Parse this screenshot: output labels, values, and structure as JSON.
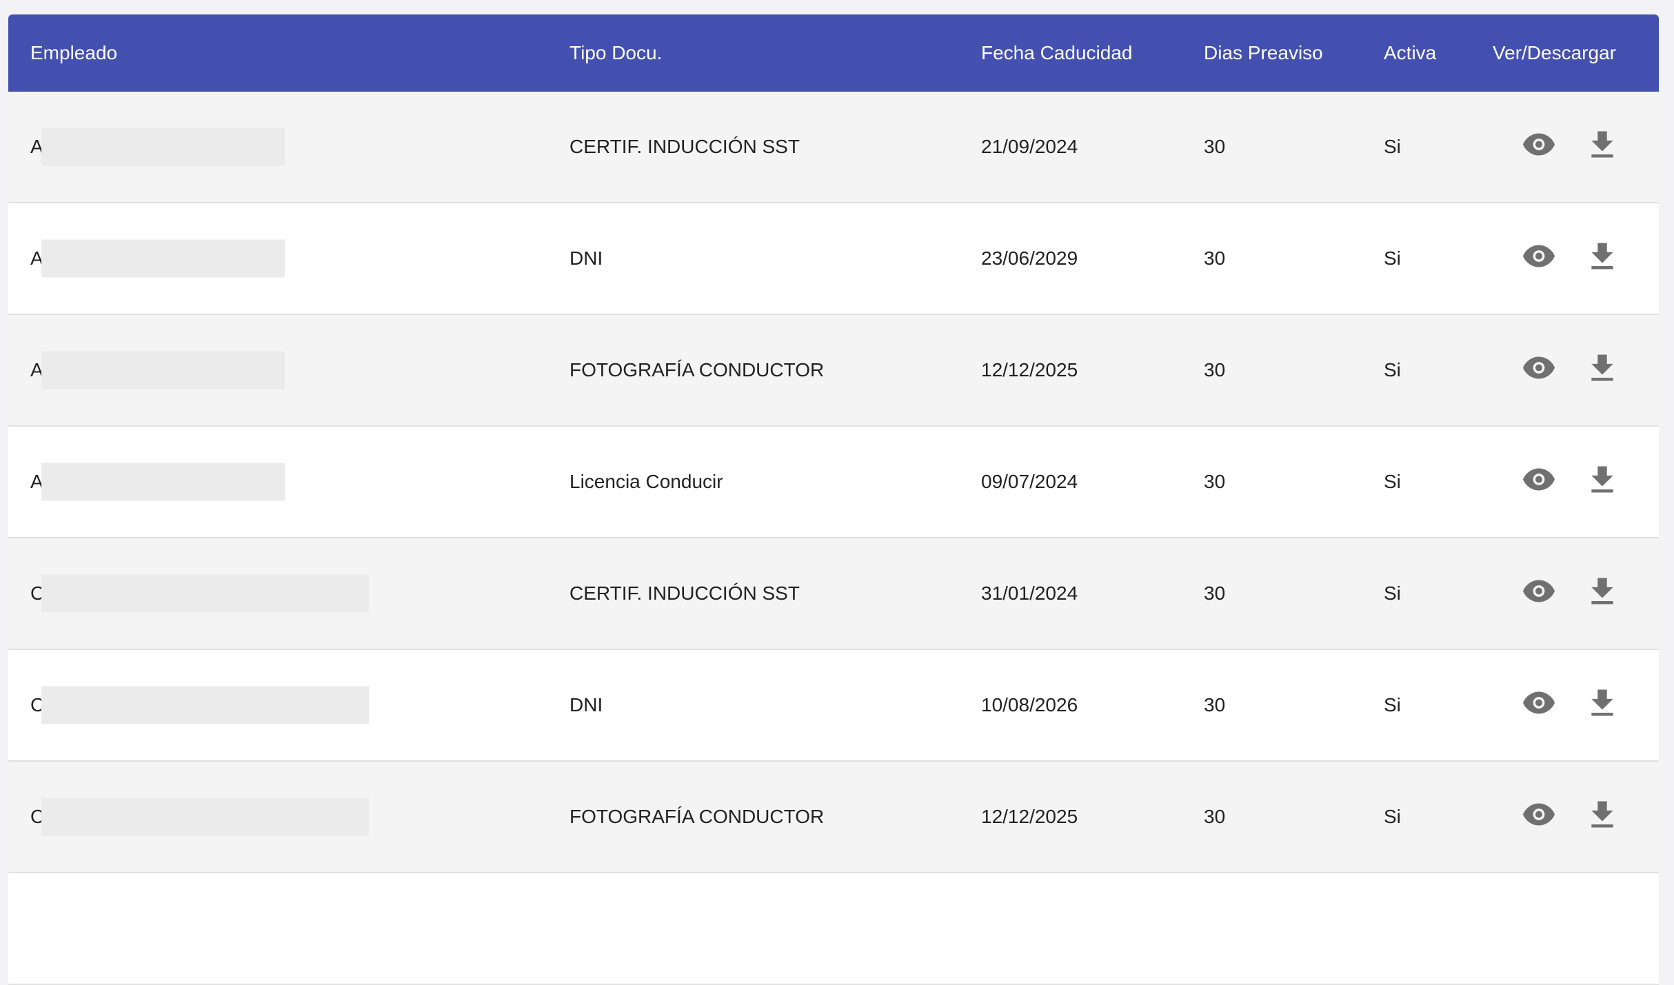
{
  "colors": {
    "header_bg": "#4450b0",
    "icon": "#707070"
  },
  "columns": [
    "Empleado",
    "Tipo Docu.",
    "Fecha Caducidad",
    "Dias Preaviso",
    "Activa",
    "Ver/Descargar"
  ],
  "rows": [
    {
      "empleado": "A",
      "tipo": "CERTIF. INDUCCIÓN SST",
      "fecha": "21/09/2024",
      "dias": "30",
      "activa": "Si"
    },
    {
      "empleado": "A",
      "tipo": "DNI",
      "fecha": "23/06/2029",
      "dias": "30",
      "activa": "Si"
    },
    {
      "empleado": "A",
      "tipo": "FOTOGRAFÍA CONDUCTOR",
      "fecha": "12/12/2025",
      "dias": "30",
      "activa": "Si"
    },
    {
      "empleado": "A",
      "tipo": "Licencia Conducir",
      "fecha": "09/07/2024",
      "dias": "30",
      "activa": "Si"
    },
    {
      "empleado": "C",
      "tipo": "CERTIF. INDUCCIÓN SST",
      "fecha": "31/01/2024",
      "dias": "30",
      "activa": "Si"
    },
    {
      "empleado": "C",
      "tipo": "DNI",
      "fecha": "10/08/2026",
      "dias": "30",
      "activa": "Si"
    },
    {
      "empleado": "C",
      "tipo": "FOTOGRAFÍA CONDUCTOR",
      "fecha": "12/12/2025",
      "dias": "30",
      "activa": "Si"
    }
  ],
  "icons": {
    "view": "eye-icon",
    "download": "download-icon"
  }
}
